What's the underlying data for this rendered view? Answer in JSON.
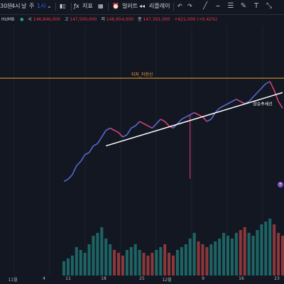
{
  "toolbar": {
    "interval_label": "30분",
    "items": [
      "4시",
      "날",
      "주",
      "1시"
    ],
    "indicator_label": "지표",
    "alert_label": "얼러트",
    "replay_label": "리플레이"
  },
  "legend": {
    "symbol": "HUMB",
    "open_label": "시",
    "open_value": "146,846,000",
    "high_label": "고",
    "high_value": "147,500,000",
    "low_label": "저",
    "low_value": "146,654,000",
    "close_label": "종",
    "close_value": "147,391,000",
    "change": "+621,000 (+0.42%)"
  },
  "annotations": {
    "horizontal_line_label": "지지_저항선",
    "trendline_label": "상승추세선"
  },
  "x_axis": {
    "labels": [
      "11월",
      "4",
      "11",
      "18",
      "25",
      "12월",
      "9",
      "16",
      "23"
    ]
  },
  "colors": {
    "background": "#131722",
    "horizontal_line": "#f0a030",
    "trendline": "#ffffff",
    "price_up": "#5b6fd6",
    "price_down": "#e0407a",
    "volume_up": "#26a69a",
    "volume_down": "#ef5350"
  },
  "drawing_tools": [
    "trend-line-icon",
    "horizontal-line-icon",
    "fib-icon",
    "brush-icon",
    "text-icon",
    "measure-icon"
  ],
  "chart_data": {
    "type": "line",
    "note_x": "daily sessions from Nov 1 to Dec 23",
    "x": [
      "11-01",
      "11-02",
      "11-03",
      "11-04",
      "11-05",
      "11-06",
      "11-07",
      "11-08",
      "11-09",
      "11-10",
      "11-11",
      "11-12",
      "11-13",
      "11-14",
      "11-15",
      "11-16",
      "11-17",
      "11-18",
      "11-19",
      "11-20",
      "11-21",
      "11-22",
      "11-23",
      "11-24",
      "11-25",
      "11-26",
      "11-27",
      "11-28",
      "11-29",
      "11-30",
      "12-01",
      "12-02",
      "12-03",
      "12-04",
      "12-05",
      "12-06",
      "12-07",
      "12-08",
      "12-09",
      "12-10",
      "12-11",
      "12-12",
      "12-13",
      "12-14",
      "12-15",
      "12-16",
      "12-17",
      "12-18",
      "12-19",
      "12-20",
      "12-21",
      "12-22",
      "12-23"
    ],
    "series": [
      {
        "name": "price",
        "values": [
          78,
          80,
          84,
          92,
          96,
          102,
          104,
          110,
          112,
          118,
          124,
          126,
          124,
          122,
          118,
          120,
          126,
          128,
          132,
          130,
          128,
          126,
          130,
          134,
          132,
          128,
          126,
          130,
          134,
          136,
          138,
          140,
          138,
          136,
          132,
          134,
          140,
          144,
          146,
          148,
          150,
          152,
          150,
          148,
          150,
          154,
          158,
          162,
          166,
          168,
          160,
          150,
          144
        ]
      }
    ],
    "volume": [
      10,
      12,
      14,
      20,
      18,
      16,
      22,
      28,
      30,
      34,
      26,
      22,
      18,
      16,
      14,
      18,
      20,
      22,
      18,
      16,
      14,
      16,
      18,
      20,
      22,
      16,
      14,
      18,
      20,
      22,
      26,
      30,
      24,
      22,
      20,
      22,
      24,
      26,
      30,
      28,
      26,
      30,
      32,
      34,
      30,
      28,
      32,
      36,
      38,
      40,
      36,
      30,
      28
    ],
    "support_resistance_level": 171,
    "trendline": {
      "start": [
        "11-11",
        110
      ],
      "end": [
        "12-23",
        158
      ]
    }
  }
}
